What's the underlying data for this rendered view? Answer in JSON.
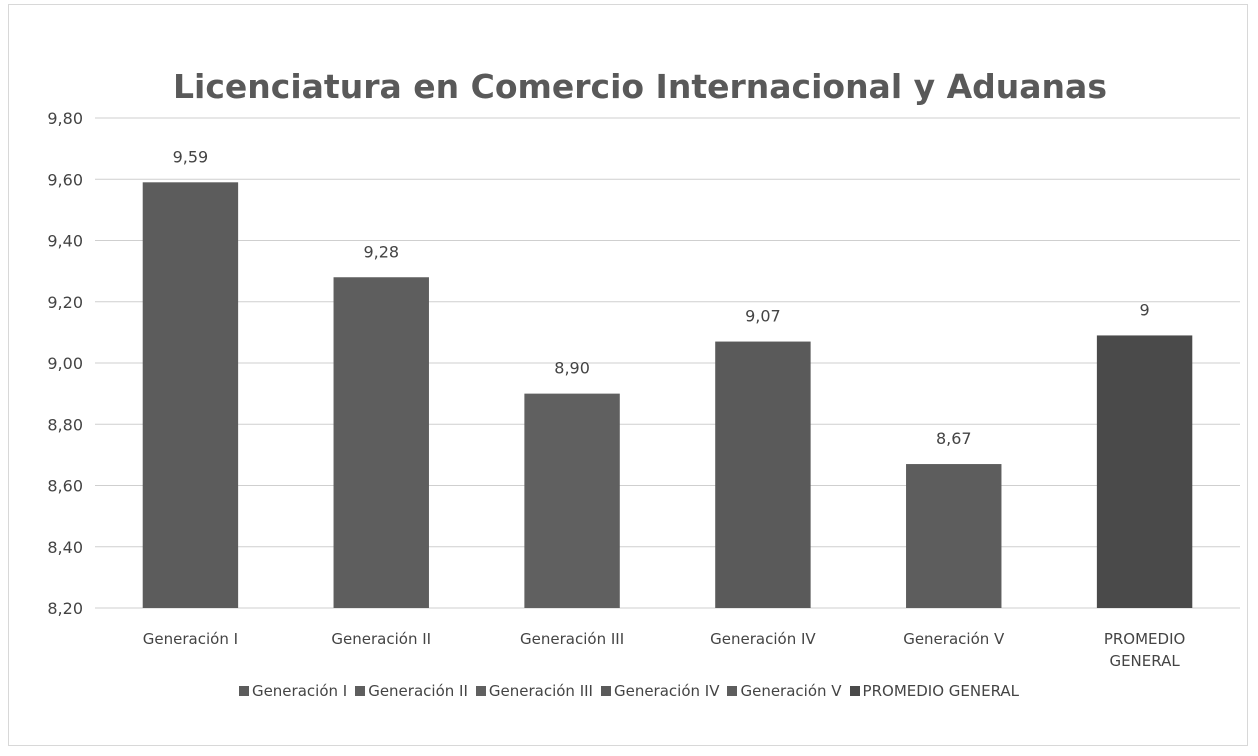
{
  "chart_data": {
    "type": "bar",
    "title": "Licenciatura en Comercio Internacional y Aduanas",
    "categories": [
      "Generación I",
      "Generación II",
      "Generación III",
      "Generación IV",
      "Generación V",
      "PROMEDIO GENERAL"
    ],
    "values": [
      9.59,
      9.28,
      8.9,
      9.07,
      8.67,
      9.09
    ],
    "value_labels": [
      "9,59",
      "9,28",
      "8,90",
      "9,07",
      "8,67",
      "9"
    ],
    "colors": [
      "#5c5c5c",
      "#5e5e5e",
      "#606060",
      "#5a5a5a",
      "#5d5d5d",
      "#4a4a4a"
    ],
    "ylim": [
      8.2,
      9.8
    ],
    "yticks": [
      {
        "value": 8.2,
        "label": "8,20"
      },
      {
        "value": 8.4,
        "label": "8,40"
      },
      {
        "value": 8.6,
        "label": "8,60"
      },
      {
        "value": 8.8,
        "label": "8,80"
      },
      {
        "value": 9.0,
        "label": "9,00"
      },
      {
        "value": 9.2,
        "label": "9,20"
      },
      {
        "value": 9.4,
        "label": "9,40"
      },
      {
        "value": 9.6,
        "label": "9,60"
      },
      {
        "value": 9.8,
        "label": "9,80"
      }
    ],
    "grid": true,
    "legend": "bottom"
  }
}
